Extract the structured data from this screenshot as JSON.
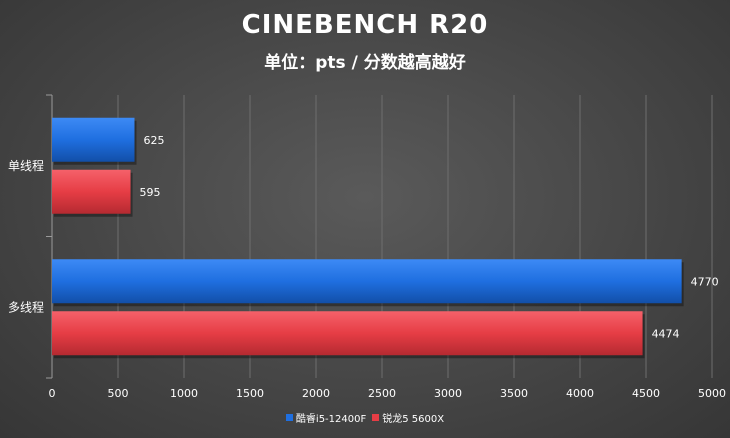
{
  "colors": {
    "series_blue": "#1f6fe0",
    "series_red": "#e63d45",
    "grid": "#6e6e6e",
    "axis": "#9a9a9a"
  },
  "chart_data": {
    "type": "bar",
    "orientation": "horizontal",
    "title": "CINEBENCH R20",
    "subtitle": "单位：pts / 分数越高越好",
    "categories": [
      "单线程",
      "多线程"
    ],
    "series": [
      {
        "name": "酷睿i5-12400F",
        "values": [
          625,
          4770
        ]
      },
      {
        "name": "锐龙5 5600X",
        "values": [
          595,
          4474
        ]
      }
    ],
    "xlim": [
      0,
      5000
    ],
    "xticks": [
      0,
      500,
      1000,
      1500,
      2000,
      2500,
      3000,
      3500,
      4000,
      4500,
      5000
    ],
    "grid": true,
    "legend_position": "bottom"
  }
}
